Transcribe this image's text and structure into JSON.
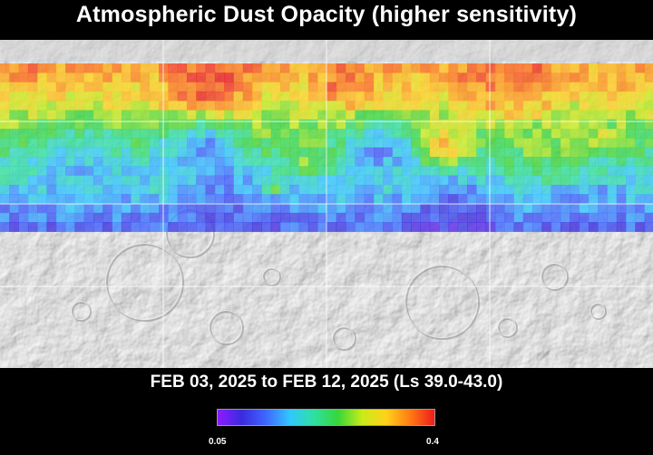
{
  "title": "Atmospheric Dust Opacity (higher sensitivity)",
  "date_range": "FEB 03, 2025 to FEB 12, 2025 (Ls 39.0-43.0)",
  "colorbar": {
    "min_label": "0.05",
    "max_label": "0.4",
    "min": 0.05,
    "max": 0.4,
    "colors": [
      "#8c1cff",
      "#3a2bdf",
      "#3f66ff",
      "#31c7ff",
      "#2fe0a0",
      "#38d63a",
      "#c8ec1a",
      "#ffd21a",
      "#ff7a14",
      "#ee1c1c"
    ]
  },
  "map": {
    "projection": "simple cylindrical, full planet",
    "basemap": "grey shaded-relief topography",
    "overlay_coverage": "northern latitudes only; southern hemisphere shows basemap",
    "grid": true
  }
}
